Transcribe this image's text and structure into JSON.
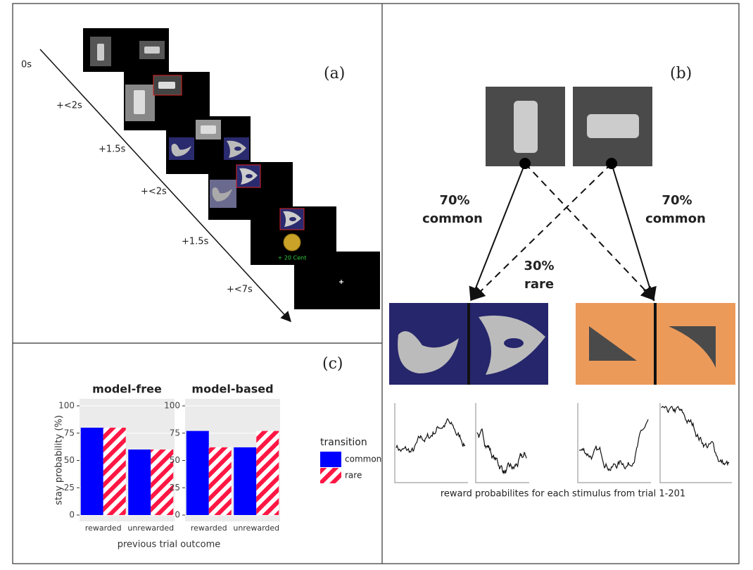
{
  "panel_labels": {
    "a": "(a)",
    "b": "(b)",
    "c": "(c)"
  },
  "timeline": {
    "times": [
      "0s",
      "+<2s",
      "+1.5s",
      "+<2s",
      "+1.5s",
      "+<7s"
    ],
    "feedback": "+ 20 Cent"
  },
  "panel_b": {
    "left_prob": "70%",
    "left_kind": "common",
    "right_prob": "70%",
    "right_kind": "common",
    "mid_prob": "30%",
    "mid_kind": "rare",
    "caption": "reward probabilites for each stimulus from trial 1-201"
  },
  "chart_data": [
    {
      "type": "bar",
      "title": "model-free",
      "y_label": "stay probability (%)",
      "x_label": "previous trial outcome",
      "legend_title": "transition",
      "categories": [
        "rewarded",
        "unrewarded"
      ],
      "ylim": [
        0,
        100
      ],
      "yticks": [
        0,
        25,
        50,
        75,
        100
      ],
      "series": [
        {
          "name": "common",
          "color": "#0000ff",
          "values": [
            80,
            60
          ]
        },
        {
          "name": "rare",
          "color": "#ff1744",
          "values": [
            80,
            60
          ]
        }
      ]
    },
    {
      "type": "bar",
      "title": "model-based",
      "categories": [
        "rewarded",
        "unrewarded"
      ],
      "ylim": [
        0,
        100
      ],
      "yticks": [
        0,
        25,
        50,
        75,
        100
      ],
      "series": [
        {
          "values": [
            77,
            62
          ]
        },
        {
          "values": [
            62,
            77
          ]
        }
      ]
    }
  ]
}
